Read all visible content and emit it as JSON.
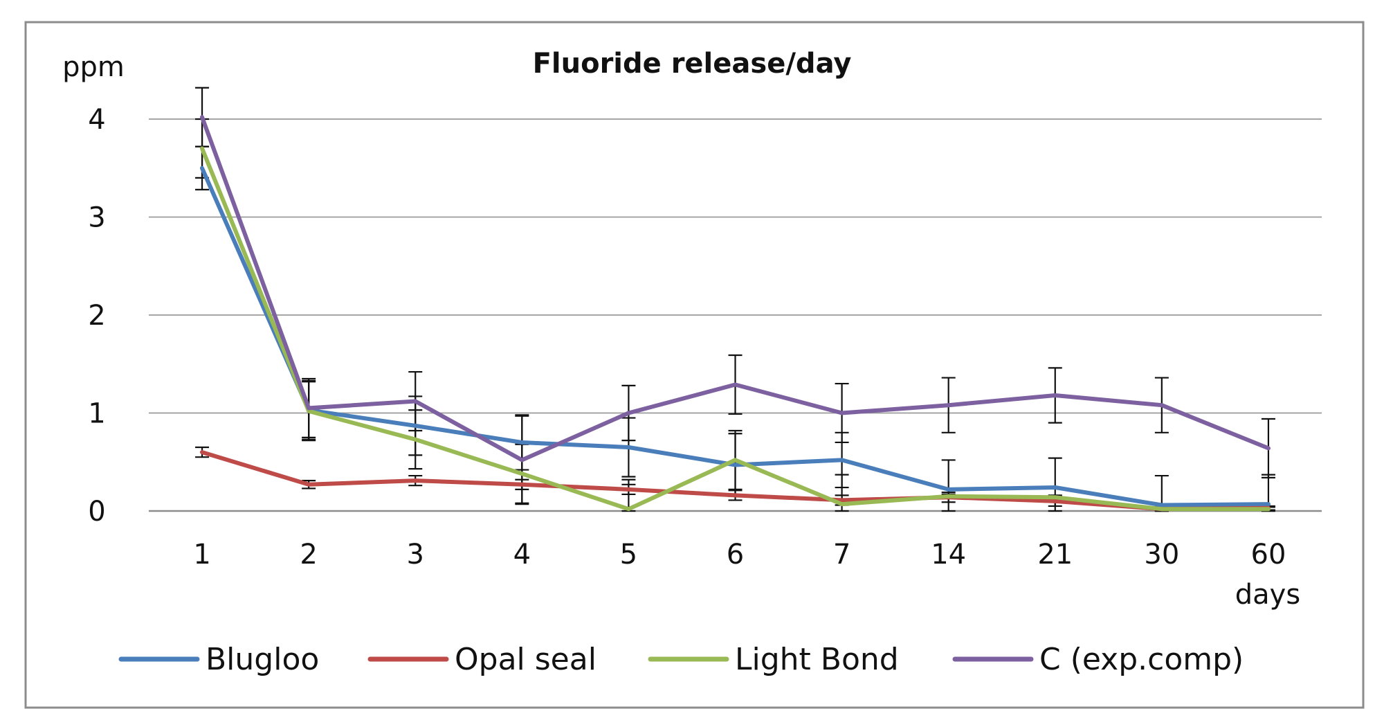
{
  "chart_data": {
    "type": "line",
    "title": "Fluoride release/day",
    "ylabel": "ppm",
    "xlabel": "days",
    "categories": [
      "1",
      "2",
      "3",
      "4",
      "5",
      "6",
      "7",
      "14",
      "21",
      "30",
      "60"
    ],
    "yticks": [
      "0",
      "1",
      "2",
      "3",
      "4"
    ],
    "ylim": [
      0,
      4.5
    ],
    "grid": true,
    "legend_position": "bottom",
    "series": [
      {
        "name": "Blugloo",
        "color": "#4a7ebb",
        "values": [
          3.5,
          1.03,
          0.87,
          0.7,
          0.65,
          0.47,
          0.52,
          0.22,
          0.24,
          0.06,
          0.07
        ],
        "errors": [
          0.22,
          0.3,
          0.3,
          0.28,
          0.3,
          0.32,
          0.28,
          0.3,
          0.3,
          0.3,
          0.3
        ]
      },
      {
        "name": "Opal seal",
        "color": "#be4b48",
        "values": [
          0.6,
          0.27,
          0.31,
          0.27,
          0.22,
          0.16,
          0.11,
          0.14,
          0.1,
          0.02,
          0.03
        ],
        "errors": [
          0.05,
          0.04,
          0.05,
          0.05,
          0.05,
          0.05,
          0.05,
          0.05,
          0.05,
          0.02,
          0.02
        ]
      },
      {
        "name": "Light Bond",
        "color": "#98b954",
        "values": [
          3.7,
          1.02,
          0.73,
          0.38,
          0.02,
          0.52,
          0.07,
          0.15,
          0.14,
          0.02,
          0.02
        ],
        "errors": [
          0.3,
          0.3,
          0.3,
          0.3,
          0.3,
          0.3,
          0.3,
          0.02,
          0.02,
          0.02,
          0.02
        ]
      },
      {
        "name": "C (exp.comp)",
        "color": "#7d60a0",
        "values": [
          4.02,
          1.05,
          1.12,
          0.52,
          1.0,
          1.29,
          1.0,
          1.08,
          1.18,
          1.08,
          0.64
        ],
        "errors": [
          0.3,
          0.3,
          0.3,
          0.45,
          0.28,
          0.3,
          0.3,
          0.28,
          0.28,
          0.28,
          0.3
        ]
      }
    ]
  }
}
